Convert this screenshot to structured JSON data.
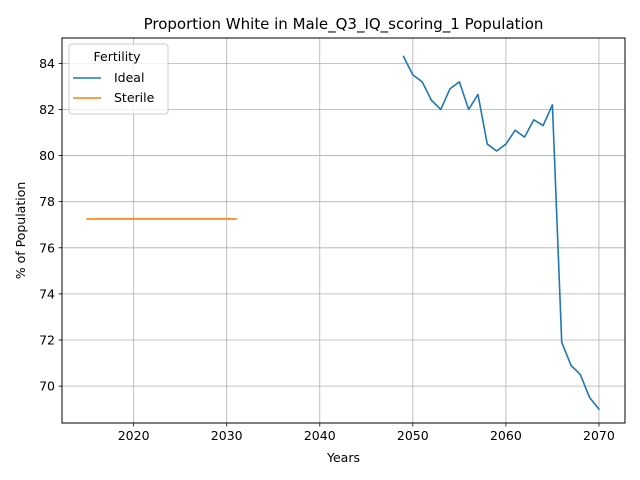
{
  "chart_data": {
    "type": "line",
    "title": "Proportion White in Male_Q3_IQ_scoring_1 Population",
    "xlabel": "Years",
    "ylabel": "% of Population",
    "xlim": [
      2012.3,
      2072.8
    ],
    "ylim": [
      68.4,
      85.1
    ],
    "xticks": [
      2020,
      2030,
      2040,
      2050,
      2060,
      2070
    ],
    "yticks": [
      70,
      72,
      74,
      76,
      78,
      80,
      82,
      84
    ],
    "grid": true,
    "legend": {
      "title": "Fertility",
      "placement": "top-left"
    },
    "series": [
      {
        "name": "Ideal",
        "color": "#1f77b4",
        "x": [
          2049,
          2050,
          2051,
          2052,
          2053,
          2054,
          2055,
          2056,
          2057,
          2058,
          2059,
          2060,
          2061,
          2062,
          2063,
          2064,
          2065,
          2066,
          2067,
          2068,
          2069,
          2070
        ],
        "y": [
          84.3,
          83.5,
          83.2,
          82.4,
          82.0,
          82.9,
          83.2,
          82.0,
          82.65,
          80.5,
          80.2,
          80.5,
          81.1,
          80.8,
          81.55,
          81.3,
          82.2,
          71.9,
          70.9,
          70.5,
          69.5,
          69.0
        ]
      },
      {
        "name": "Sterile",
        "color": "#ff7f0e",
        "x": [
          2015,
          2031
        ],
        "y": [
          77.25,
          77.25
        ]
      }
    ]
  }
}
